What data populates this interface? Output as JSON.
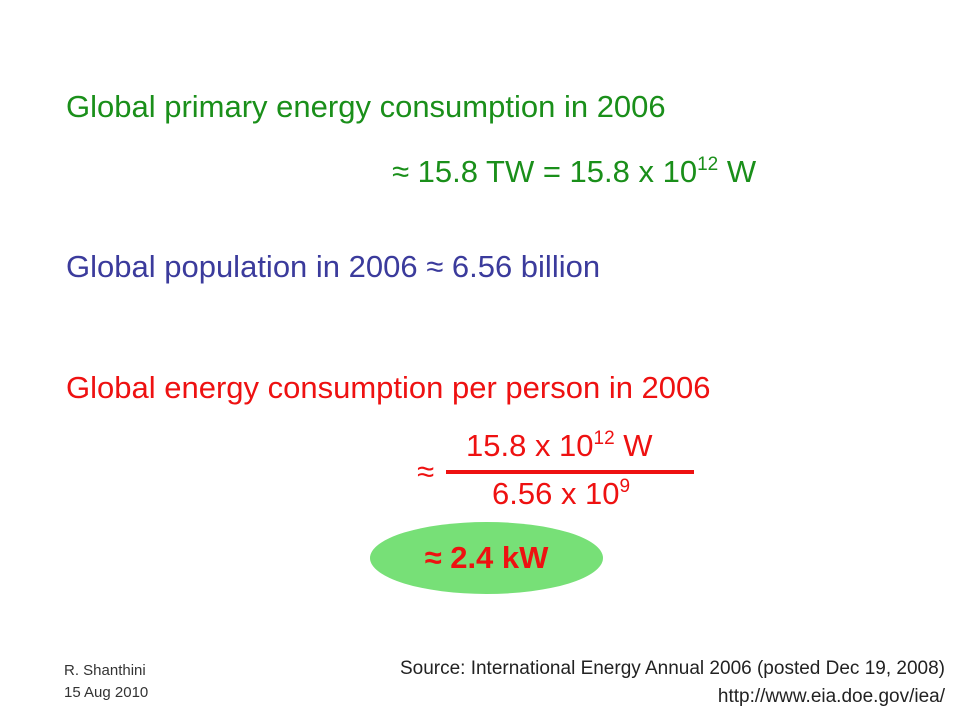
{
  "slide": {
    "consumption_heading": "Global primary energy consumption in 2006",
    "consumption_value_prefix": "≈ 15.8 TW = 15.8 x 10",
    "consumption_value_exp": "12",
    "consumption_value_suffix": " W",
    "population_line": "Global population in 2006 ≈ 6.56 billion",
    "per_person_heading": "Global energy consumption per person in 2006",
    "approx_sign": "≈",
    "numerator_prefix": "15.8 x 10",
    "numerator_exp": "12",
    "numerator_suffix": " W",
    "denominator_prefix": "6.56 x 10",
    "denominator_exp": "9",
    "result": "≈ 2.4 kW"
  },
  "footer": {
    "author_name": "R. Shanthini",
    "author_date": "15 Aug 2010",
    "source": "Source: International Energy Annual 2006 (posted Dec 19, 2008)",
    "url": "http://www.eia.doe.gov/iea/"
  },
  "colors": {
    "green": "#1a8f1a",
    "blue": "#3b3b9c",
    "red": "#ee1111",
    "highlight": "#77e077"
  }
}
